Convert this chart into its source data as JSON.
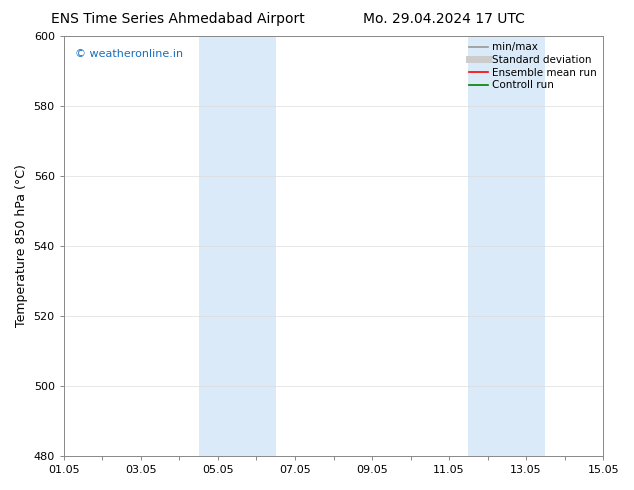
{
  "title_left": "ENS Time Series Ahmedabad Airport",
  "title_right": "Mo. 29.04.2024 17 UTC",
  "ylabel": "Temperature 850 hPa (°C)",
  "ylim": [
    480,
    600
  ],
  "yticks": [
    480,
    500,
    520,
    540,
    560,
    580,
    600
  ],
  "xlim": [
    0,
    14
  ],
  "xtick_labels": [
    "01.05",
    "03.05",
    "05.05",
    "07.05",
    "09.05",
    "11.05",
    "13.05",
    "15.05"
  ],
  "xtick_positions": [
    0,
    2,
    4,
    6,
    8,
    10,
    12,
    14
  ],
  "minor_xtick_positions": [
    1,
    3,
    5,
    7,
    9,
    11,
    13
  ],
  "shaded_bands": [
    {
      "x_start": 3.5,
      "x_end": 5.5
    },
    {
      "x_start": 10.5,
      "x_end": 12.5
    }
  ],
  "shaded_color": "#daeaf8",
  "background_color": "#ffffff",
  "watermark_text": "© weatheronline.in",
  "watermark_color": "#1a6ebd",
  "legend_entries": [
    {
      "label": "min/max",
      "color": "#999999",
      "lw": 1.2
    },
    {
      "label": "Standard deviation",
      "color": "#cccccc",
      "lw": 5
    },
    {
      "label": "Ensemble mean run",
      "color": "#ff0000",
      "lw": 1.2
    },
    {
      "label": "Controll run",
      "color": "#008000",
      "lw": 1.2
    }
  ],
  "grid_color": "#dddddd",
  "spine_color": "#888888",
  "title_fontsize": 10,
  "ylabel_fontsize": 9,
  "tick_labelsize": 8,
  "legend_fontsize": 7.5
}
